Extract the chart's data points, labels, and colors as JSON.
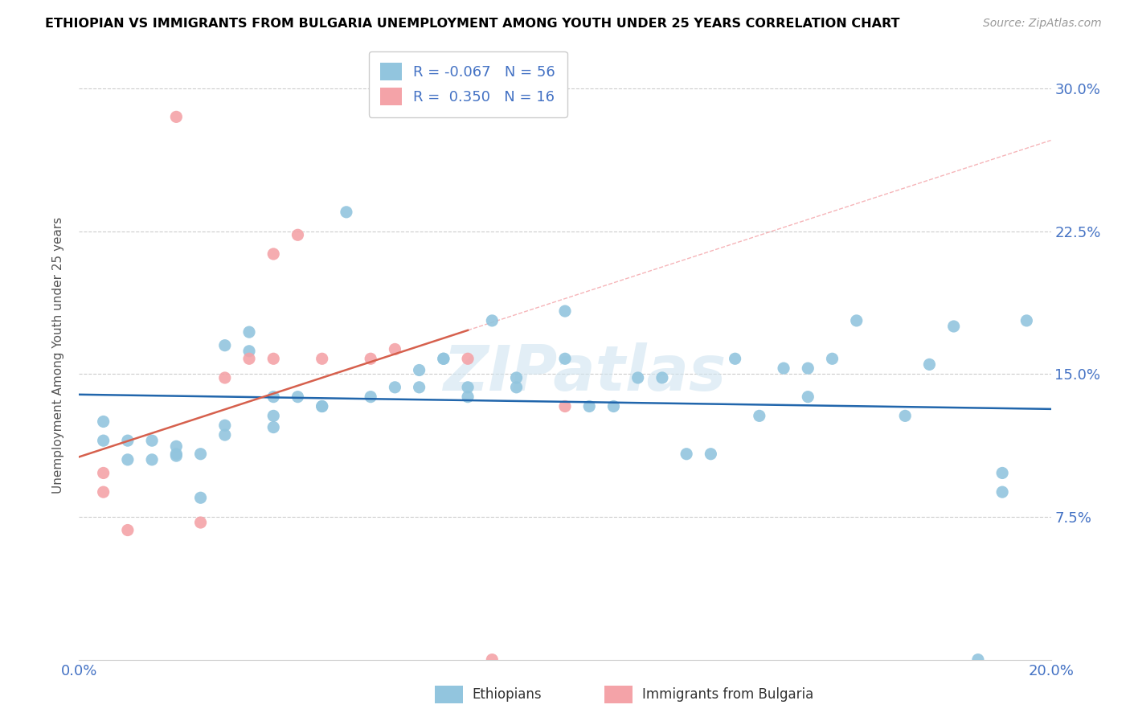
{
  "title": "ETHIOPIAN VS IMMIGRANTS FROM BULGARIA UNEMPLOYMENT AMONG YOUTH UNDER 25 YEARS CORRELATION CHART",
  "source": "Source: ZipAtlas.com",
  "ylabel": "Unemployment Among Youth under 25 years",
  "watermark": "ZIPatlas",
  "xlim": [
    0.0,
    0.2
  ],
  "ylim": [
    0.0,
    0.32
  ],
  "yticks": [
    0.0,
    0.075,
    0.15,
    0.225,
    0.3
  ],
  "ytick_labels": [
    "",
    "7.5%",
    "15.0%",
    "22.5%",
    "30.0%"
  ],
  "xticks": [
    0.0,
    0.025,
    0.05,
    0.075,
    0.1,
    0.125,
    0.15,
    0.175,
    0.2
  ],
  "xtick_labels": [
    "0.0%",
    "",
    "",
    "",
    "",
    "",
    "",
    "",
    "20.0%"
  ],
  "legend_R1": "-0.067",
  "legend_N1": "56",
  "legend_R2": "0.350",
  "legend_N2": "16",
  "legend_label1": "Ethiopians",
  "legend_label2": "Immigrants from Bulgaria",
  "blue_color": "#92c5de",
  "pink_color": "#f4a3a8",
  "trend_blue": "#2166ac",
  "trend_pink": "#d6604d",
  "diag_color": "#f4a3a8",
  "blue_dots_x": [
    0.005,
    0.005,
    0.01,
    0.01,
    0.015,
    0.015,
    0.02,
    0.02,
    0.02,
    0.025,
    0.025,
    0.03,
    0.03,
    0.03,
    0.035,
    0.035,
    0.04,
    0.04,
    0.04,
    0.045,
    0.05,
    0.05,
    0.055,
    0.06,
    0.065,
    0.07,
    0.07,
    0.075,
    0.075,
    0.08,
    0.08,
    0.085,
    0.09,
    0.09,
    0.1,
    0.1,
    0.105,
    0.11,
    0.115,
    0.12,
    0.125,
    0.13,
    0.135,
    0.14,
    0.145,
    0.15,
    0.15,
    0.155,
    0.16,
    0.17,
    0.175,
    0.18,
    0.185,
    0.19,
    0.19,
    0.195
  ],
  "blue_dots_y": [
    0.125,
    0.115,
    0.105,
    0.115,
    0.115,
    0.105,
    0.108,
    0.112,
    0.107,
    0.108,
    0.085,
    0.118,
    0.123,
    0.165,
    0.162,
    0.172,
    0.122,
    0.128,
    0.138,
    0.138,
    0.133,
    0.133,
    0.235,
    0.138,
    0.143,
    0.143,
    0.152,
    0.158,
    0.158,
    0.138,
    0.143,
    0.178,
    0.143,
    0.148,
    0.158,
    0.183,
    0.133,
    0.133,
    0.148,
    0.148,
    0.108,
    0.108,
    0.158,
    0.128,
    0.153,
    0.153,
    0.138,
    0.158,
    0.178,
    0.128,
    0.155,
    0.175,
    0.0,
    0.098,
    0.088,
    0.178
  ],
  "pink_dots_x": [
    0.005,
    0.005,
    0.01,
    0.02,
    0.025,
    0.03,
    0.035,
    0.04,
    0.04,
    0.045,
    0.05,
    0.06,
    0.065,
    0.08,
    0.085,
    0.1
  ],
  "pink_dots_y": [
    0.088,
    0.098,
    0.068,
    0.285,
    0.072,
    0.148,
    0.158,
    0.158,
    0.213,
    0.223,
    0.158,
    0.158,
    0.163,
    0.158,
    0.0,
    0.133
  ],
  "background_color": "#ffffff",
  "grid_color": "#cccccc",
  "title_color": "#000000",
  "tick_label_color": "#4472c4"
}
